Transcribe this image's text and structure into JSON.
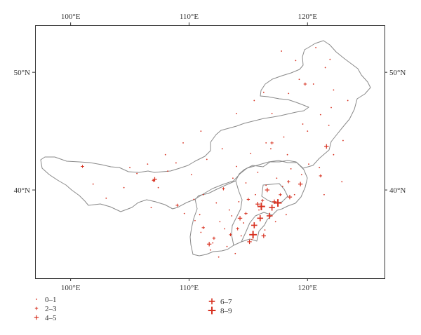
{
  "colors": {
    "marker": "#d7301f",
    "border": "#8a8a8a",
    "frame": "#333333"
  },
  "map": {
    "lon_range": [
      97.0,
      126.5
    ],
    "lat_range": [
      32.5,
      54.0
    ],
    "x_ticks": [
      {
        "lon": 100,
        "label": "100°E"
      },
      {
        "lon": 110,
        "label": "110°E"
      },
      {
        "lon": 120,
        "label": "120°E"
      }
    ],
    "y_ticks": [
      {
        "lat": 40,
        "label": "40°N"
      },
      {
        "lat": 50,
        "label": "50°N"
      }
    ]
  },
  "legend": [
    {
      "label": "0–1",
      "size": 1
    },
    {
      "label": "2–3",
      "size": 2
    },
    {
      "label": "4–5",
      "size": 3
    },
    {
      "label": "6–7",
      "size": 4
    },
    {
      "label": "8–9",
      "size": 5
    }
  ],
  "chart_data": {
    "type": "scatter",
    "title": "",
    "xlabel": "",
    "ylabel": "",
    "xlim": [
      97.0,
      126.5
    ],
    "ylim": [
      32.5,
      54.0
    ],
    "series": [
      {
        "name": "0–1",
        "points": [
          [
            101.9,
            40.5
          ],
          [
            103.0,
            39.3
          ],
          [
            104.5,
            40.2
          ],
          [
            105.6,
            41.4
          ],
          [
            106.8,
            38.5
          ],
          [
            108.9,
            42.3
          ],
          [
            110.2,
            41.3
          ],
          [
            111.5,
            42.6
          ],
          [
            112.8,
            43.5
          ],
          [
            114.0,
            42.0
          ],
          [
            115.2,
            43.1
          ],
          [
            116.5,
            44.0
          ],
          [
            118.0,
            44.5
          ],
          [
            119.6,
            45.6
          ],
          [
            121.1,
            46.4
          ],
          [
            122.0,
            47.0
          ],
          [
            123.0,
            44.2
          ],
          [
            123.4,
            47.6
          ],
          [
            120.5,
            49.0
          ],
          [
            119.0,
            51.0
          ],
          [
            120.7,
            52.1
          ],
          [
            117.8,
            51.8
          ],
          [
            116.3,
            48.3
          ],
          [
            115.5,
            47.6
          ],
          [
            114.0,
            46.5
          ],
          [
            111.0,
            45.0
          ],
          [
            109.5,
            44.0
          ],
          [
            108.0,
            43.0
          ],
          [
            106.5,
            42.2
          ],
          [
            110.4,
            39.2
          ],
          [
            109.6,
            38.0
          ],
          [
            110.5,
            37.4
          ],
          [
            111.0,
            36.4
          ],
          [
            112.0,
            35.5
          ],
          [
            113.0,
            36.7
          ],
          [
            113.6,
            37.8
          ],
          [
            114.2,
            39.0
          ],
          [
            114.8,
            40.6
          ],
          [
            115.6,
            39.6
          ],
          [
            116.5,
            40.4
          ],
          [
            117.4,
            41.0
          ],
          [
            118.6,
            41.8
          ],
          [
            119.5,
            41.3
          ],
          [
            121.0,
            41.9
          ],
          [
            122.2,
            43.0
          ],
          [
            120.1,
            42.2
          ],
          [
            113.4,
            38.3
          ],
          [
            112.6,
            37.3
          ],
          [
            112.3,
            38.9
          ],
          [
            111.2,
            39.6
          ],
          [
            114.4,
            36.1
          ],
          [
            115.3,
            35.8
          ],
          [
            116.4,
            36.6
          ],
          [
            117.3,
            37.3
          ],
          [
            118.2,
            37.9
          ],
          [
            118.9,
            39.6
          ],
          [
            117.9,
            40.3
          ],
          [
            122.9,
            40.7
          ],
          [
            121.4,
            39.6
          ],
          [
            113.9,
            34.6
          ],
          [
            112.5,
            34.3
          ],
          [
            113.2,
            35.2
          ],
          [
            111.8,
            34.9
          ],
          [
            115.9,
            38.3
          ],
          [
            114.6,
            37.2
          ],
          [
            110.9,
            37.9
          ],
          [
            116.9,
            43.5
          ],
          [
            118.3,
            43.0
          ],
          [
            115.8,
            41.5
          ],
          [
            105.0,
            41.9
          ],
          [
            107.4,
            40.2
          ],
          [
            108.2,
            41.6
          ],
          [
            113.7,
            41.0
          ],
          [
            121.8,
            45.5
          ],
          [
            120.0,
            45.0
          ],
          [
            117.0,
            46.5
          ],
          [
            122.2,
            48.5
          ],
          [
            118.4,
            48.2
          ],
          [
            121.5,
            50.4
          ],
          [
            121.9,
            51.1
          ],
          [
            119.3,
            49.4
          ]
        ]
      },
      {
        "name": "2–3",
        "points": [
          [
            107.0,
            40.8
          ],
          [
            109.0,
            38.7
          ],
          [
            111.2,
            36.8
          ],
          [
            112.9,
            40.1
          ],
          [
            113.5,
            36.2
          ],
          [
            114.8,
            38.0
          ],
          [
            115.0,
            39.2
          ],
          [
            116.2,
            39.1
          ],
          [
            117.7,
            39.6
          ],
          [
            118.4,
            40.7
          ],
          [
            117.0,
            44.0
          ],
          [
            121.1,
            41.2
          ],
          [
            112.1,
            35.9
          ],
          [
            114.1,
            36.7
          ],
          [
            119.8,
            49.0
          ],
          [
            101.0,
            42.0
          ]
        ]
      },
      {
        "name": "4–5",
        "points": [
          [
            111.7,
            35.4
          ],
          [
            114.3,
            37.6
          ],
          [
            115.8,
            38.8
          ],
          [
            116.6,
            40.0
          ],
          [
            117.2,
            39.0
          ],
          [
            118.5,
            39.4
          ],
          [
            119.4,
            40.5
          ],
          [
            121.6,
            43.7
          ],
          [
            107.1,
            40.9
          ],
          [
            115.1,
            35.6
          ],
          [
            116.3,
            36.1
          ]
        ]
      },
      {
        "name": "6–7",
        "points": [
          [
            115.5,
            37.0
          ],
          [
            116.0,
            37.6
          ],
          [
            117.0,
            38.5
          ],
          [
            116.8,
            37.8
          ]
        ]
      },
      {
        "name": "8–9",
        "points": [
          [
            115.4,
            36.2
          ],
          [
            117.5,
            38.9
          ],
          [
            116.1,
            38.6
          ]
        ]
      }
    ]
  }
}
